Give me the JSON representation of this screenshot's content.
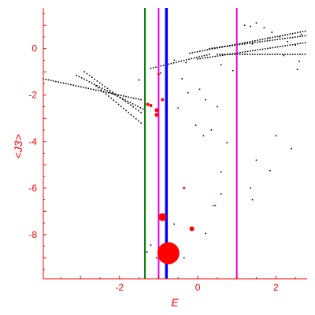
{
  "chart_data": {
    "type": "scatter",
    "title": "",
    "xlabel": "E",
    "ylabel": "<J3>",
    "xlim": [
      -3.95,
      2.8
    ],
    "ylim": [
      -9.9,
      1.75
    ],
    "x_ticks": [
      -2,
      0,
      2
    ],
    "y_ticks": [
      0,
      -2,
      -4,
      -6,
      -8
    ],
    "grid": false,
    "legend": "none",
    "colors": {
      "axis": "#ff0000",
      "points": "#000000",
      "highlight": "#ff0000",
      "line_green": "#008000",
      "line_magenta": "#e000e0",
      "line_blue": "#0000ff"
    },
    "vertical_lines": [
      {
        "x": -1.35,
        "color": "#008000"
      },
      {
        "x": -1.0,
        "color": "#e000e0"
      },
      {
        "x": -0.8,
        "color": "#0000ff"
      },
      {
        "x": 1.0,
        "color": "#e000e0"
      }
    ],
    "bands": [
      {
        "x_start": -3.95,
        "x_end": -1.45,
        "y_start": -1.3,
        "y_end": -2.2
      },
      {
        "x_start": -3.1,
        "x_end": -1.4,
        "y_start": -1.15,
        "y_end": -2.6
      },
      {
        "x_start": -2.9,
        "x_end": -1.45,
        "y_start": -1.0,
        "y_end": -2.75
      },
      {
        "x_start": -2.6,
        "x_end": -1.45,
        "y_start": -1.6,
        "y_end": -3.2
      },
      {
        "x_start": -1.2,
        "x_end": 0.3,
        "y_start": -0.85,
        "y_end": -0.25
      },
      {
        "x_start": -0.2,
        "x_end": 2.75,
        "y_start": -0.2,
        "y_end": 0.75
      },
      {
        "x_start": 0.0,
        "x_end": 2.75,
        "y_start": -0.45,
        "y_end": 0.25
      },
      {
        "x_start": 0.3,
        "x_end": 2.75,
        "y_start": 0.0,
        "y_end": 0.55
      },
      {
        "x_start": 0.5,
        "x_end": 2.75,
        "y_start": -0.25,
        "y_end": -0.25
      }
    ],
    "scatter_points": [
      [
        1.2,
        1.0
      ],
      [
        1.35,
        0.95
      ],
      [
        1.5,
        1.1
      ],
      [
        1.7,
        0.9
      ],
      [
        1.9,
        0.7
      ],
      [
        2.1,
        0.5
      ],
      [
        2.3,
        0.3
      ],
      [
        2.5,
        0.15
      ],
      [
        1.4,
        0.2
      ],
      [
        1.8,
        0.45
      ],
      [
        2.2,
        -0.3
      ],
      [
        2.6,
        -0.55
      ],
      [
        2.55,
        -0.9
      ],
      [
        0.6,
        -0.7
      ],
      [
        0.9,
        -0.95
      ],
      [
        -0.3,
        -0.6
      ],
      [
        -0.6,
        -0.5
      ],
      [
        -0.4,
        -1.3
      ],
      [
        -0.8,
        -1.5
      ],
      [
        -0.25,
        -1.9
      ],
      [
        0.2,
        -2.2
      ],
      [
        0.5,
        -2.5
      ],
      [
        -0.05,
        -3.3
      ],
      [
        0.35,
        -3.5
      ],
      [
        0.15,
        -3.75
      ],
      [
        0.75,
        -4.05
      ],
      [
        2.0,
        -3.75
      ],
      [
        2.4,
        -4.3
      ],
      [
        1.5,
        -4.8
      ],
      [
        1.85,
        -5.25
      ],
      [
        0.6,
        -5.3
      ],
      [
        1.35,
        -6.0
      ],
      [
        0.6,
        -6.25
      ],
      [
        1.4,
        -6.5
      ],
      [
        -1.35,
        -6.85
      ],
      [
        0.45,
        -6.75
      ],
      [
        -0.6,
        -7.55
      ],
      [
        0.2,
        -7.95
      ],
      [
        -1.2,
        -8.45
      ],
      [
        -1.3,
        -8.75
      ],
      [
        -1.05,
        -9.0
      ],
      [
        -0.6,
        -9.05
      ],
      [
        -0.35,
        -9.0
      ],
      [
        -0.95,
        -1.05
      ],
      [
        -1.5,
        -1.35
      ],
      [
        0.05,
        -1.75
      ],
      [
        -1.0,
        -2.65
      ],
      [
        1.0,
        -1.2
      ],
      [
        2.65,
        0.6
      ]
    ],
    "highlighted_points": [
      {
        "x": -1.28,
        "y": -2.4,
        "size": 2
      },
      {
        "x": -1.2,
        "y": -2.45,
        "size": 2
      },
      {
        "x": -1.05,
        "y": -2.65,
        "size": 2.5
      },
      {
        "x": -0.9,
        "y": -2.2,
        "size": 2
      },
      {
        "x": -1.05,
        "y": -2.85,
        "size": 2.5
      },
      {
        "x": -1.0,
        "y": -1.1,
        "size": 1.5
      },
      {
        "x": -0.5,
        "y": -2.55,
        "size": 1
      },
      {
        "x": -0.35,
        "y": -6.0,
        "size": 1.5
      },
      {
        "x": 0.4,
        "y": -6.75,
        "size": 1
      },
      {
        "x": -0.9,
        "y": -7.25,
        "size": 5
      },
      {
        "x": -0.15,
        "y": -7.75,
        "size": 3
      },
      {
        "x": -0.75,
        "y": -8.8,
        "size": 14
      }
    ]
  }
}
